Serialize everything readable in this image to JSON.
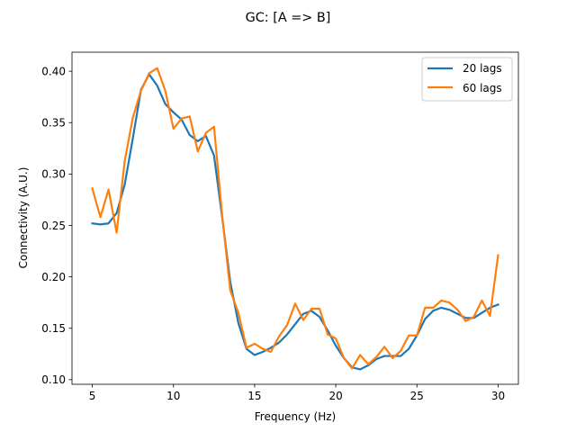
{
  "chart_data": {
    "type": "line",
    "title": "GC: [A => B]",
    "xlabel": "Frequency (Hz)",
    "ylabel": "Connectivity (A.U.)",
    "xlim": [
      3.75,
      31.25
    ],
    "ylim": [
      0.0955,
      0.4185
    ],
    "xticks": [
      5,
      10,
      15,
      20,
      25,
      30
    ],
    "xtick_labels": [
      "5",
      "10",
      "15",
      "20",
      "25",
      "30"
    ],
    "yticks": [
      0.1,
      0.15,
      0.2,
      0.25,
      0.3,
      0.35,
      0.4
    ],
    "ytick_labels": [
      "0.10",
      "0.15",
      "0.20",
      "0.25",
      "0.30",
      "0.35",
      "0.40"
    ],
    "grid": false,
    "legend_position": "top-right",
    "x": [
      5.0,
      5.5,
      6.0,
      6.5,
      7.0,
      7.5,
      8.0,
      8.5,
      9.0,
      9.5,
      10.0,
      10.5,
      11.0,
      11.5,
      12.0,
      12.5,
      13.0,
      13.5,
      14.0,
      14.5,
      15.0,
      15.5,
      16.0,
      16.5,
      17.0,
      17.5,
      18.0,
      18.5,
      19.0,
      19.5,
      20.0,
      20.5,
      21.0,
      21.5,
      22.0,
      22.5,
      23.0,
      23.5,
      24.0,
      24.5,
      25.0,
      25.5,
      26.0,
      26.5,
      27.0,
      27.5,
      28.0,
      28.5,
      29.0,
      29.5,
      30.0
    ],
    "series": [
      {
        "name": "20 lags",
        "color": "#1f77b4",
        "values": [
          0.252,
          0.251,
          0.252,
          0.262,
          0.29,
          0.335,
          0.382,
          0.397,
          0.386,
          0.368,
          0.36,
          0.353,
          0.338,
          0.332,
          0.337,
          0.318,
          0.258,
          0.195,
          0.155,
          0.13,
          0.124,
          0.127,
          0.131,
          0.136,
          0.144,
          0.154,
          0.164,
          0.167,
          0.161,
          0.148,
          0.133,
          0.121,
          0.112,
          0.11,
          0.114,
          0.12,
          0.123,
          0.123,
          0.123,
          0.13,
          0.143,
          0.159,
          0.167,
          0.17,
          0.168,
          0.164,
          0.16,
          0.16,
          0.165,
          0.17,
          0.173
        ]
      },
      {
        "name": "60 lags",
        "color": "#ff7f0e",
        "values": [
          0.286,
          0.258,
          0.285,
          0.243,
          0.313,
          0.355,
          0.381,
          0.398,
          0.403,
          0.381,
          0.344,
          0.354,
          0.356,
          0.322,
          0.34,
          0.346,
          0.26,
          0.187,
          0.165,
          0.131,
          0.135,
          0.13,
          0.127,
          0.142,
          0.153,
          0.174,
          0.158,
          0.169,
          0.169,
          0.144,
          0.14,
          0.121,
          0.111,
          0.124,
          0.115,
          0.122,
          0.132,
          0.121,
          0.128,
          0.143,
          0.143,
          0.17,
          0.17,
          0.177,
          0.175,
          0.168,
          0.157,
          0.161,
          0.177,
          0.162,
          0.221
        ]
      }
    ]
  }
}
